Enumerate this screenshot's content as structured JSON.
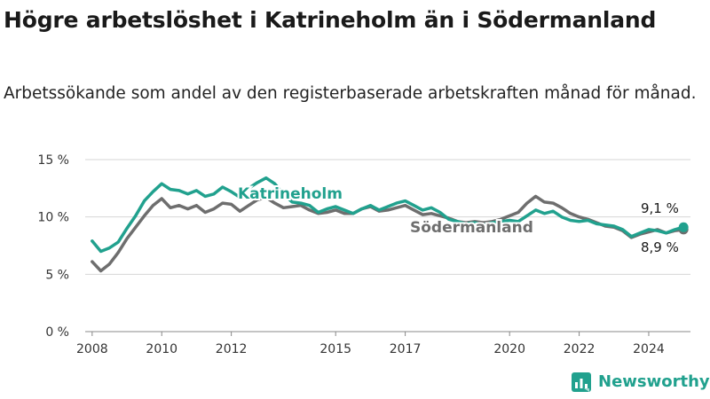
{
  "title": "Högre arbetslöshet i Katrineholm än i Södermanland",
  "subtitle": "Arbetssökande som andel av den registerbaserade arbetskraften månad för månad.",
  "brand": {
    "name": "Newsworthy",
    "color": "#21a18e"
  },
  "chart_data": {
    "type": "line",
    "ylim": [
      0,
      15
    ],
    "xlim": [
      2007.8,
      2025.2
    ],
    "y_ticks": [
      {
        "value": 0,
        "label": "0 %"
      },
      {
        "value": 5,
        "label": "5 %"
      },
      {
        "value": 10,
        "label": "10 %"
      },
      {
        "value": 15,
        "label": "15 %"
      }
    ],
    "x_ticks": [
      {
        "value": 2008,
        "label": "2008"
      },
      {
        "value": 2010,
        "label": "2010"
      },
      {
        "value": 2012,
        "label": "2012"
      },
      {
        "value": 2015,
        "label": "2015"
      },
      {
        "value": 2017,
        "label": "2017"
      },
      {
        "value": 2020,
        "label": "2020"
      },
      {
        "value": 2022,
        "label": "2022"
      },
      {
        "value": 2024,
        "label": "2024"
      }
    ],
    "grid": true,
    "series": [
      {
        "name": "Katrineholm",
        "color": "#21a18e",
        "points": [
          [
            2008.0,
            7.9
          ],
          [
            2008.25,
            7.0
          ],
          [
            2008.5,
            7.3
          ],
          [
            2008.75,
            7.8
          ],
          [
            2009.0,
            9.0
          ],
          [
            2009.25,
            10.1
          ],
          [
            2009.5,
            11.4
          ],
          [
            2009.75,
            12.2
          ],
          [
            2010.0,
            12.9
          ],
          [
            2010.25,
            12.4
          ],
          [
            2010.5,
            12.3
          ],
          [
            2010.75,
            12.0
          ],
          [
            2011.0,
            12.3
          ],
          [
            2011.25,
            11.8
          ],
          [
            2011.5,
            12.0
          ],
          [
            2011.75,
            12.6
          ],
          [
            2012.0,
            12.2
          ],
          [
            2012.25,
            11.7
          ],
          [
            2012.5,
            12.5
          ],
          [
            2012.75,
            13.0
          ],
          [
            2013.0,
            13.4
          ],
          [
            2013.25,
            12.9
          ],
          [
            2013.5,
            12.0
          ],
          [
            2013.75,
            11.3
          ],
          [
            2014.0,
            11.2
          ],
          [
            2014.25,
            11.0
          ],
          [
            2014.5,
            10.4
          ],
          [
            2014.75,
            10.7
          ],
          [
            2015.0,
            10.9
          ],
          [
            2015.25,
            10.6
          ],
          [
            2015.5,
            10.3
          ],
          [
            2015.75,
            10.7
          ],
          [
            2016.0,
            11.0
          ],
          [
            2016.25,
            10.6
          ],
          [
            2016.5,
            10.9
          ],
          [
            2016.75,
            11.2
          ],
          [
            2017.0,
            11.4
          ],
          [
            2017.25,
            11.0
          ],
          [
            2017.5,
            10.6
          ],
          [
            2017.75,
            10.8
          ],
          [
            2018.0,
            10.4
          ],
          [
            2018.25,
            9.8
          ],
          [
            2018.5,
            9.6
          ],
          [
            2018.75,
            9.4
          ],
          [
            2019.0,
            9.5
          ],
          [
            2019.25,
            9.3
          ],
          [
            2019.5,
            9.5
          ],
          [
            2019.75,
            9.6
          ],
          [
            2020.0,
            9.7
          ],
          [
            2020.25,
            9.6
          ],
          [
            2020.5,
            10.1
          ],
          [
            2020.75,
            10.6
          ],
          [
            2021.0,
            10.3
          ],
          [
            2021.25,
            10.5
          ],
          [
            2021.5,
            10.0
          ],
          [
            2021.75,
            9.7
          ],
          [
            2022.0,
            9.6
          ],
          [
            2022.25,
            9.7
          ],
          [
            2022.5,
            9.4
          ],
          [
            2022.75,
            9.3
          ],
          [
            2023.0,
            9.2
          ],
          [
            2023.25,
            8.9
          ],
          [
            2023.5,
            8.3
          ],
          [
            2023.75,
            8.6
          ],
          [
            2024.0,
            8.9
          ],
          [
            2024.25,
            8.8
          ],
          [
            2024.5,
            8.6
          ],
          [
            2024.75,
            8.9
          ],
          [
            2025.0,
            9.1
          ]
        ]
      },
      {
        "name": "Södermanland",
        "color": "#6e6e6e",
        "points": [
          [
            2008.0,
            6.1
          ],
          [
            2008.25,
            5.3
          ],
          [
            2008.5,
            5.9
          ],
          [
            2008.75,
            6.9
          ],
          [
            2009.0,
            8.1
          ],
          [
            2009.25,
            9.1
          ],
          [
            2009.5,
            10.1
          ],
          [
            2009.75,
            11.0
          ],
          [
            2010.0,
            11.6
          ],
          [
            2010.25,
            10.8
          ],
          [
            2010.5,
            11.0
          ],
          [
            2010.75,
            10.7
          ],
          [
            2011.0,
            11.0
          ],
          [
            2011.25,
            10.4
          ],
          [
            2011.5,
            10.7
          ],
          [
            2011.75,
            11.2
          ],
          [
            2012.0,
            11.1
          ],
          [
            2012.25,
            10.5
          ],
          [
            2012.5,
            11.0
          ],
          [
            2012.75,
            11.5
          ],
          [
            2013.0,
            11.7
          ],
          [
            2013.25,
            11.2
          ],
          [
            2013.5,
            10.8
          ],
          [
            2013.75,
            10.9
          ],
          [
            2014.0,
            11.0
          ],
          [
            2014.25,
            10.6
          ],
          [
            2014.5,
            10.3
          ],
          [
            2014.75,
            10.4
          ],
          [
            2015.0,
            10.6
          ],
          [
            2015.25,
            10.3
          ],
          [
            2015.5,
            10.3
          ],
          [
            2015.75,
            10.7
          ],
          [
            2016.0,
            10.9
          ],
          [
            2016.25,
            10.5
          ],
          [
            2016.5,
            10.6
          ],
          [
            2016.75,
            10.8
          ],
          [
            2017.0,
            11.0
          ],
          [
            2017.25,
            10.6
          ],
          [
            2017.5,
            10.2
          ],
          [
            2017.75,
            10.3
          ],
          [
            2018.0,
            10.1
          ],
          [
            2018.25,
            9.9
          ],
          [
            2018.5,
            9.6
          ],
          [
            2018.75,
            9.5
          ],
          [
            2019.0,
            9.6
          ],
          [
            2019.25,
            9.5
          ],
          [
            2019.5,
            9.6
          ],
          [
            2019.75,
            9.8
          ],
          [
            2020.0,
            10.1
          ],
          [
            2020.25,
            10.4
          ],
          [
            2020.5,
            11.2
          ],
          [
            2020.75,
            11.8
          ],
          [
            2021.0,
            11.3
          ],
          [
            2021.25,
            11.2
          ],
          [
            2021.5,
            10.8
          ],
          [
            2021.75,
            10.3
          ],
          [
            2022.0,
            10.0
          ],
          [
            2022.25,
            9.8
          ],
          [
            2022.5,
            9.5
          ],
          [
            2022.75,
            9.2
          ],
          [
            2023.0,
            9.1
          ],
          [
            2023.25,
            8.8
          ],
          [
            2023.5,
            8.2
          ],
          [
            2023.75,
            8.5
          ],
          [
            2024.0,
            8.7
          ],
          [
            2024.25,
            8.9
          ],
          [
            2024.5,
            8.6
          ],
          [
            2024.75,
            8.8
          ],
          [
            2025.0,
            8.9
          ]
        ]
      }
    ],
    "annotations": [
      {
        "series": "Katrineholm",
        "label": "Katrineholm"
      },
      {
        "series": "Södermanland",
        "label": "Södermanland"
      },
      {
        "series": "Katrineholm",
        "label": "9,1 %"
      },
      {
        "series": "Södermanland",
        "label": "8,9 %"
      }
    ]
  }
}
